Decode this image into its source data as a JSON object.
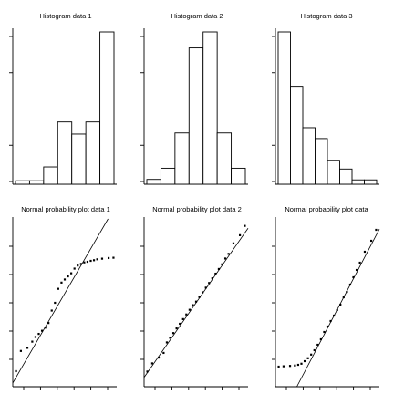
{
  "chart_data": [
    {
      "type": "bar",
      "title": "Histogram data 1",
      "values": [
        0.1,
        0.1,
        0.5,
        1.8,
        1.45,
        1.8,
        4.4
      ],
      "ylim": [
        0,
        4.4
      ],
      "grid": false
    },
    {
      "type": "bar",
      "title": "Histogram data 2",
      "values": [
        0.3,
        1.0,
        3.2,
        8.5,
        9.5,
        3.2,
        1.0
      ],
      "ylim": [
        0,
        9.5
      ],
      "grid": false
    },
    {
      "type": "bar",
      "title": "Histogram data 3",
      "values": [
        7.0,
        4.5,
        2.6,
        2.1,
        1.1,
        0.7,
        0.2,
        0.2
      ],
      "ylim": [
        0,
        7.0
      ],
      "grid": false
    },
    {
      "type": "scatter",
      "title": "Normal probability plot data 1",
      "x": [
        -3.0,
        -2.7,
        -2.3,
        -2.0,
        -1.8,
        -1.6,
        -1.4,
        -1.2,
        -1.0,
        -0.8,
        -0.6,
        -0.4,
        -0.2,
        0.0,
        0.2,
        0.4,
        0.6,
        0.8,
        1.0,
        1.2,
        1.4,
        1.6,
        1.8,
        2.0,
        2.3,
        2.7,
        3.0
      ],
      "y": [
        -2.5,
        -1.85,
        -1.75,
        -1.55,
        -1.4,
        -1.3,
        -1.2,
        -1.1,
        -0.95,
        -0.55,
        -0.3,
        0.15,
        0.35,
        0.45,
        0.55,
        0.65,
        0.8,
        0.9,
        0.95,
        1.0,
        1.02,
        1.05,
        1.07,
        1.1,
        1.12,
        1.14,
        1.15
      ],
      "reference_line": {
        "slope": 0.9,
        "intercept": 0.0
      },
      "xlim": [
        -3.2,
        3.2
      ],
      "ylim": [
        -3.0,
        2.4
      ],
      "grid": false
    },
    {
      "type": "scatter",
      "title": "Normal probability plot data 2",
      "x": [
        -3.0,
        -2.7,
        -2.3,
        -2.0,
        -1.8,
        -1.6,
        -1.4,
        -1.2,
        -1.0,
        -0.8,
        -0.6,
        -0.4,
        -0.2,
        0.0,
        0.2,
        0.4,
        0.6,
        0.8,
        1.0,
        1.2,
        1.4,
        1.6,
        1.8,
        2.0,
        2.3,
        2.7,
        3.0
      ],
      "y": [
        -2.95,
        -2.6,
        -2.35,
        -2.15,
        -1.7,
        -1.5,
        -1.3,
        -1.1,
        -0.9,
        -0.7,
        -0.5,
        -0.3,
        -0.1,
        0.05,
        0.25,
        0.45,
        0.65,
        0.85,
        1.05,
        1.25,
        1.45,
        1.65,
        1.9,
        2.1,
        2.55,
        2.9,
        3.3
      ],
      "reference_line": {
        "slope": 1.0,
        "intercept": 0.0
      },
      "xlim": [
        -3.2,
        3.2
      ],
      "ylim": [
        -3.6,
        3.6
      ],
      "grid": false
    },
    {
      "type": "scatter",
      "title": "Normal probability plot data",
      "x": [
        -3.0,
        -2.7,
        -2.3,
        -2.0,
        -1.8,
        -1.6,
        -1.4,
        -1.2,
        -1.0,
        -0.8,
        -0.6,
        -0.4,
        -0.2,
        0.0,
        0.2,
        0.4,
        0.6,
        0.8,
        1.0,
        1.2,
        1.4,
        1.6,
        1.8,
        2.0,
        2.3,
        2.7,
        3.0
      ],
      "y": [
        -1.05,
        -1.04,
        -1.03,
        -1.02,
        -1.0,
        -0.97,
        -0.9,
        -0.82,
        -0.72,
        -0.6,
        -0.45,
        -0.3,
        -0.1,
        0.05,
        0.2,
        0.35,
        0.5,
        0.65,
        0.85,
        1.0,
        1.2,
        1.4,
        1.6,
        1.8,
        2.1,
        2.4,
        2.7
      ],
      "reference_line": {
        "slope": 0.85,
        "intercept": 0.0
      },
      "xlim": [
        -3.2,
        3.2
      ],
      "ylim": [
        -1.6,
        3.0
      ],
      "grid": false
    }
  ]
}
